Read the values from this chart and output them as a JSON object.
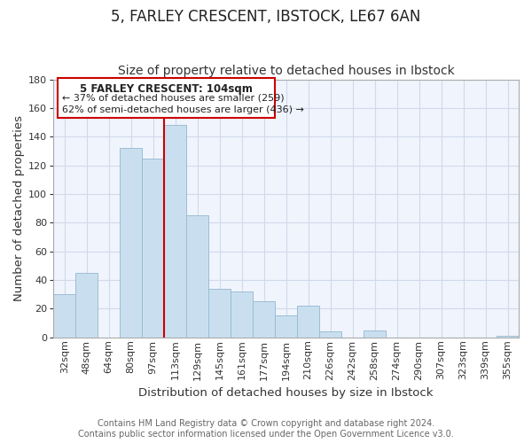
{
  "title": "5, FARLEY CRESCENT, IBSTOCK, LE67 6AN",
  "subtitle": "Size of property relative to detached houses in Ibstock",
  "xlabel": "Distribution of detached houses by size in Ibstock",
  "ylabel": "Number of detached properties",
  "bar_labels": [
    "32sqm",
    "48sqm",
    "64sqm",
    "80sqm",
    "97sqm",
    "113sqm",
    "129sqm",
    "145sqm",
    "161sqm",
    "177sqm",
    "194sqm",
    "210sqm",
    "226sqm",
    "242sqm",
    "258sqm",
    "274sqm",
    "290sqm",
    "307sqm",
    "323sqm",
    "339sqm",
    "355sqm"
  ],
  "bar_values": [
    30,
    45,
    0,
    132,
    125,
    148,
    85,
    34,
    32,
    25,
    15,
    22,
    4,
    0,
    5,
    0,
    0,
    0,
    0,
    0,
    1
  ],
  "bar_color": "#c9dff0",
  "bar_edge_color": "#9bbdd4",
  "vline_color": "#cc0000",
  "ylim": [
    0,
    180
  ],
  "yticks": [
    0,
    20,
    40,
    60,
    80,
    100,
    120,
    140,
    160,
    180
  ],
  "annotation_title": "5 FARLEY CRESCENT: 104sqm",
  "annotation_line1": "← 37% of detached houses are smaller (259)",
  "annotation_line2": "62% of semi-detached houses are larger (436) →",
  "footer_line1": "Contains HM Land Registry data © Crown copyright and database right 2024.",
  "footer_line2": "Contains public sector information licensed under the Open Government Licence v3.0.",
  "title_fontsize": 12,
  "subtitle_fontsize": 10,
  "axis_label_fontsize": 9.5,
  "tick_fontsize": 8,
  "footer_fontsize": 7,
  "annotation_fontsize": 8.5,
  "grid_color": "#d0daea",
  "background_color": "#f0f4fc"
}
